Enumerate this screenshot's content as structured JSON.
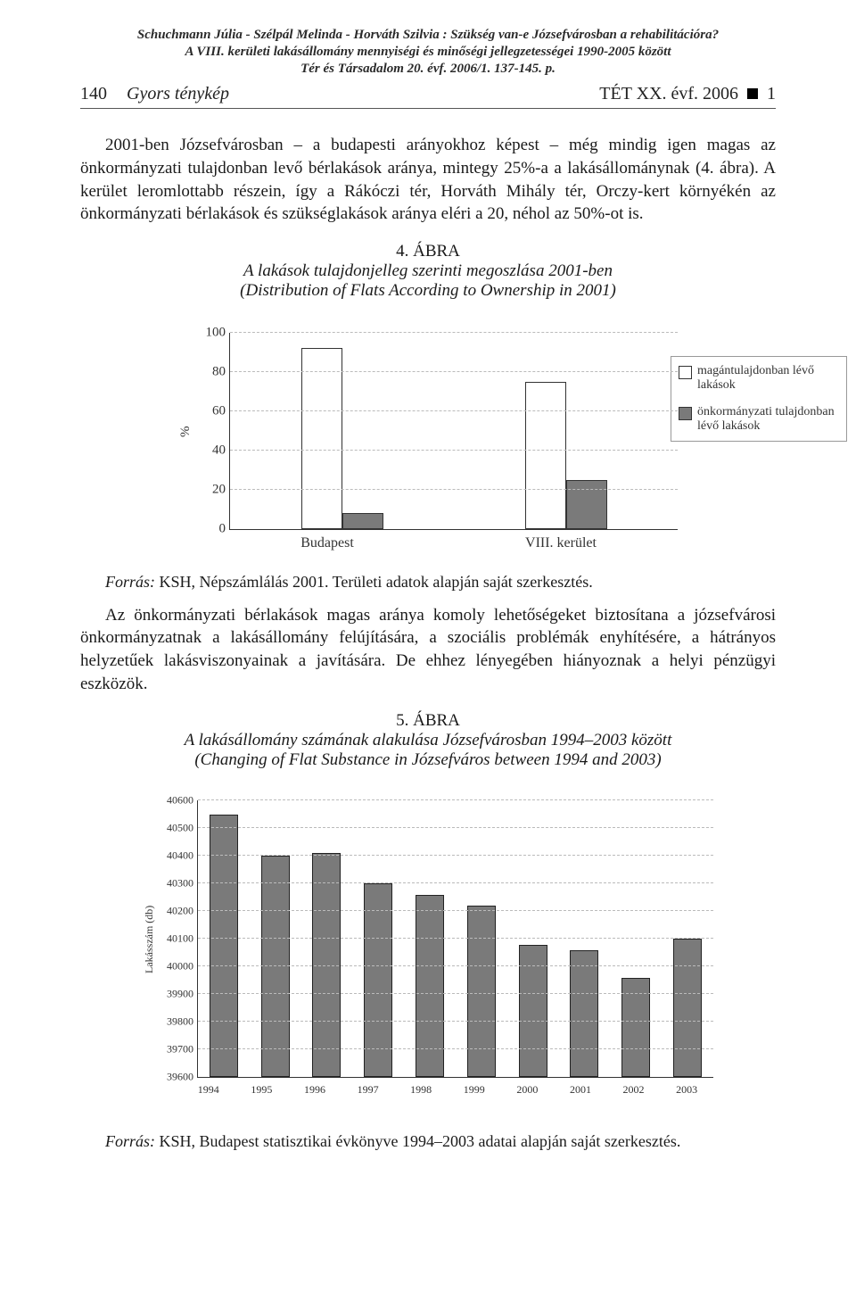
{
  "meta": {
    "line1": "Schuchmann Júlia - Szélpál Melinda - Horváth Szilvia : Szükség van-e Józsefvárosban a rehabilitációra?",
    "line2": "A VIII. kerületi lakásállomány mennyiségi és minőségi jellegzetességei 1990-2005 között",
    "line3": "Tér és Társadalom 20. évf. 2006/1. 137-145. p."
  },
  "running_head": {
    "page_number": "140",
    "section": "Gyors ténykép",
    "journal": "TÉT XX. évf. 2006",
    "issue_after_box": "1"
  },
  "para1": "2001-ben Józsefvárosban – a budapesti arányokhoz képest – még mindig igen magas az önkormányzati tulajdonban levő bérlakások aránya, mintegy 25%-a a lakásállománynak (4. ábra). A kerület leromlottabb részein, így a Rákóczi tér, Horváth Mihály tér, Orczy-kert környékén az önkormányzati bérlakások és szükséglakások aránya eléri a 20, néhol az 50%-ot is.",
  "fig4": {
    "num": "4. ÁBRA",
    "title_hu": "A lakások tulajdonjelleg szerinti megoszlása 2001-ben",
    "title_en": "(Distribution of Flats According to Ownership in 2001)",
    "chart": {
      "type": "grouped-bar",
      "y_label": "%",
      "ylim": [
        0,
        100
      ],
      "ytick_step": 20,
      "yticks": [
        0,
        20,
        40,
        60,
        80,
        100
      ],
      "categories": [
        "Budapest",
        "VIII. kerület"
      ],
      "series": [
        {
          "name": "magántulajdonban lévő lakások",
          "color": "#ffffff",
          "values": [
            92,
            75
          ]
        },
        {
          "name": "önkormányzati tulajdonban lévő lakások",
          "color": "#7a7a7a",
          "values": [
            8,
            25
          ]
        }
      ],
      "bar_border": "#333333",
      "grid_color": "#bbbbbb",
      "background_color": "#ffffff",
      "legend_border": "#999999",
      "font_size_axis": 15,
      "font_size_legend": 14
    },
    "source_label": "Forrás:",
    "source_text": " KSH, Népszámlálás 2001. Területi adatok alapján saját szerkesztés."
  },
  "para2": "Az önkormányzati bérlakások magas aránya komoly lehetőségeket biztosítana a józsefvárosi önkormányzatnak a lakásállomány felújítására, a szociális problémák enyhítésére, a hátrányos helyzetűek lakásviszonyainak a javítására. De ehhez lényegében hiányoznak a helyi pénzügyi eszközök.",
  "fig5": {
    "num": "5. ÁBRA",
    "title_hu": "A lakásállomány számának alakulása Józsefvárosban 1994–2003 között",
    "title_en": "(Changing of Flat Substance in Józsefváros between 1994 and 2003)",
    "chart": {
      "type": "bar",
      "y_label": "Lakásszám (db)",
      "ylim": [
        39600,
        40600
      ],
      "ytick_step": 100,
      "yticks": [
        39600,
        39700,
        39800,
        39900,
        40000,
        40100,
        40200,
        40300,
        40400,
        40500,
        40600
      ],
      "categories": [
        "1994",
        "1995",
        "1996",
        "1997",
        "1998",
        "1999",
        "2000",
        "2001",
        "2002",
        "2003"
      ],
      "values": [
        40550,
        40400,
        40410,
        40300,
        40260,
        40220,
        40080,
        40060,
        39960,
        40100
      ],
      "bar_color": "#7a7a7a",
      "bar_border": "#222222",
      "grid_color": "#bbbbbb",
      "background_color": "#ffffff",
      "font_size_axis": 12
    },
    "source_label": "Forrás:",
    "source_text": " KSH, Budapest statisztikai évkönyve 1994–2003 adatai alapján saját szerkesztés."
  }
}
